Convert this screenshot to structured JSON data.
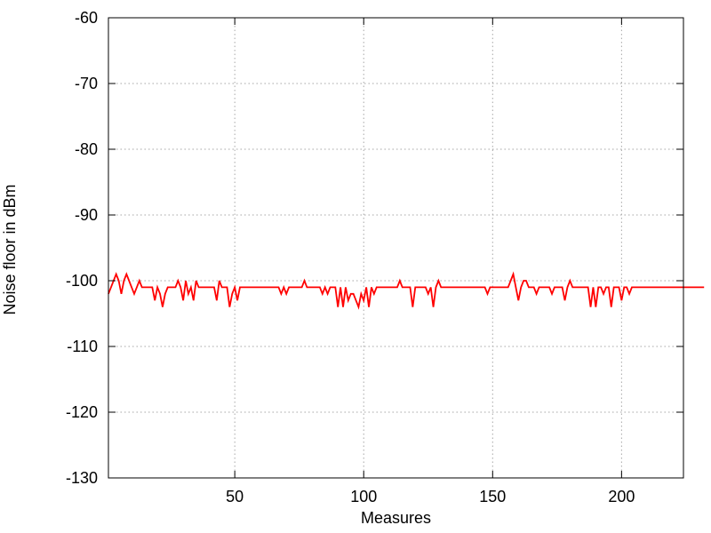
{
  "chart_data": {
    "type": "line",
    "xlabel": "Measures",
    "ylabel": "Noise floor in dBm",
    "xlim": [
      1,
      224
    ],
    "ylim": [
      -130,
      -60
    ],
    "x_ticks": [
      50,
      100,
      150,
      200
    ],
    "y_ticks": [
      -130,
      -120,
      -110,
      -100,
      -90,
      -80,
      -70,
      -60
    ],
    "grid": true,
    "series": [
      {
        "color": "#ff0000",
        "x_start": 1,
        "x_step": 1,
        "values": [
          -102,
          -101,
          -100,
          -99,
          -100,
          -102,
          -100,
          -99,
          -100,
          -101,
          -102,
          -101,
          -100,
          -101,
          -101,
          -101,
          -101,
          -101,
          -103,
          -101,
          -102,
          -104,
          -102,
          -101,
          -101,
          -101,
          -101,
          -100,
          -101,
          -103,
          -100,
          -102,
          -101,
          -103,
          -100,
          -101,
          -101,
          -101,
          -101,
          -101,
          -101,
          -101,
          -103,
          -100,
          -101,
          -101,
          -101,
          -104,
          -102,
          -101,
          -103,
          -101,
          -101,
          -101,
          -101,
          -101,
          -101,
          -101,
          -101,
          -101,
          -101,
          -101,
          -101,
          -101,
          -101,
          -101,
          -101,
          -102,
          -101,
          -102,
          -101,
          -101,
          -101,
          -101,
          -101,
          -101,
          -100,
          -101,
          -101,
          -101,
          -101,
          -101,
          -101,
          -102,
          -101,
          -102,
          -101,
          -101,
          -101,
          -104,
          -101,
          -104,
          -101,
          -103,
          -102,
          -102,
          -103,
          -104,
          -102,
          -103,
          -101,
          -104,
          -101,
          -102,
          -101,
          -101,
          -101,
          -101,
          -101,
          -101,
          -101,
          -101,
          -101,
          -100,
          -101,
          -101,
          -101,
          -101,
          -104,
          -101,
          -101,
          -101,
          -101,
          -101,
          -102,
          -101,
          -104,
          -101,
          -100,
          -101,
          -101,
          -101,
          -101,
          -101,
          -101,
          -101,
          -101,
          -101,
          -101,
          -101,
          -101,
          -101,
          -101,
          -101,
          -101,
          -101,
          -101,
          -102,
          -101,
          -101,
          -101,
          -101,
          -101,
          -101,
          -101,
          -101,
          -100,
          -99,
          -101,
          -103,
          -101,
          -100,
          -100,
          -101,
          -101,
          -101,
          -102,
          -101,
          -101,
          -101,
          -101,
          -101,
          -102,
          -101,
          -101,
          -101,
          -101,
          -103,
          -101,
          -100,
          -101,
          -101,
          -101,
          -101,
          -101,
          -101,
          -101,
          -104,
          -101,
          -104,
          -101,
          -101,
          -102,
          -101,
          -101,
          -104,
          -101,
          -101,
          -101,
          -103,
          -101,
          -101,
          -102,
          -101,
          -101,
          -101,
          -101,
          -101,
          -101,
          -101,
          -101,
          -101,
          -101,
          -101,
          -101,
          -101,
          -101,
          -101,
          -101,
          -101,
          -101,
          -101,
          -101,
          -101,
          -101,
          -101,
          -101,
          -101,
          -101,
          -101,
          -101,
          -101
        ]
      }
    ]
  }
}
